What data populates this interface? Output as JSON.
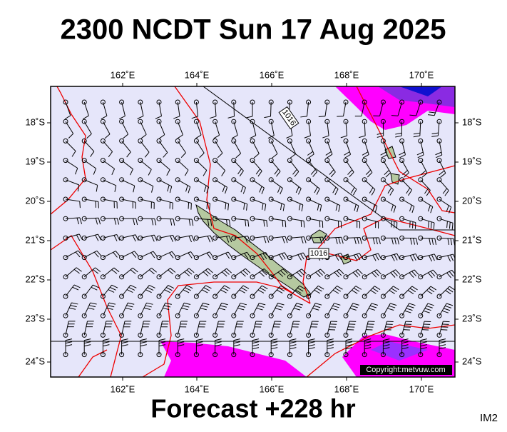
{
  "header": {
    "title": "2300 NCDT Sun 17 Aug 2025"
  },
  "map": {
    "lon_labels": [
      "162˚E",
      "164˚E",
      "166˚E",
      "168˚E",
      "170˚E"
    ],
    "lat_labels": [
      "18˚S",
      "19˚S",
      "20˚S",
      "21˚S",
      "22˚S",
      "23˚S",
      "24˚S"
    ],
    "isobar_labels": [
      "1016",
      "1016"
    ],
    "copyright": "Copyright:metvuw.com"
  },
  "footer": {
    "forecast": "Forecast +228 hr",
    "product": "IM2"
  }
}
